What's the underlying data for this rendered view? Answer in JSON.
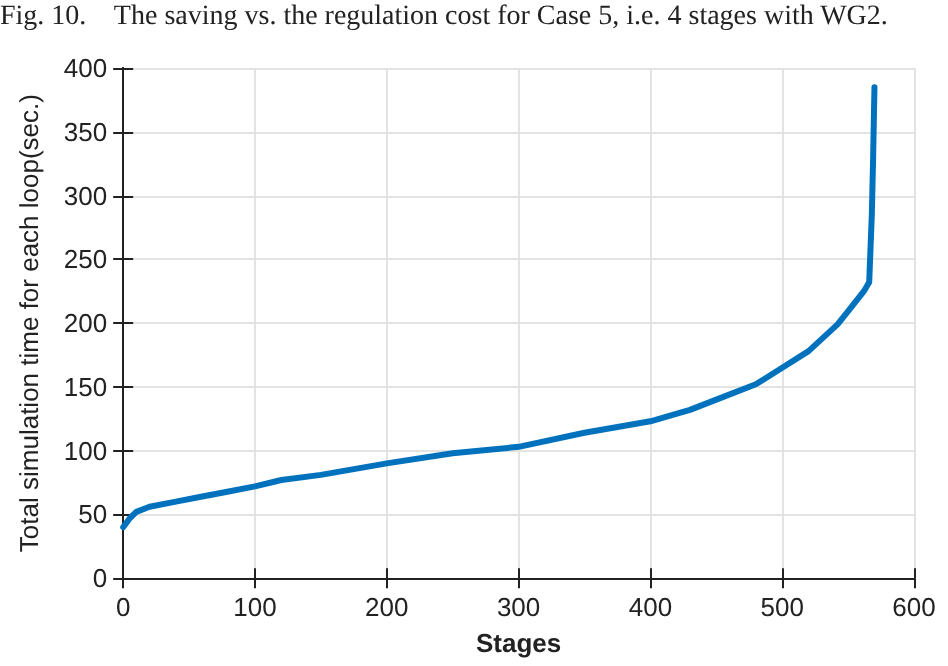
{
  "chart_data": {
    "type": "line",
    "annotations": [
      "Fig. 10.    The saving vs. the regulation cost for Case 5, i.e. 4 stages with WG2."
    ],
    "xlabel": "Stages",
    "ylabel": "Total simulation time for each loop(sec.)",
    "x": [
      0,
      5,
      10,
      20,
      40,
      60,
      80,
      100,
      120,
      150,
      200,
      250,
      300,
      350,
      400,
      430,
      450,
      480,
      500,
      520,
      542,
      552,
      562,
      566,
      568,
      569,
      570
    ],
    "series": [
      {
        "color": "#0072bd",
        "values": [
          40,
          47,
          52,
          56,
          60,
          64,
          68,
          72,
          77,
          81,
          90,
          98,
          103,
          114,
          123,
          132,
          140,
          152,
          165,
          178,
          199,
          212,
          225,
          232,
          285,
          330,
          385
        ]
      }
    ],
    "xlim": [
      0,
      600
    ],
    "xticks": [
      0,
      100,
      200,
      300,
      400,
      500,
      600
    ],
    "ylim": [
      0,
      400
    ],
    "yticks": [
      0,
      50,
      100,
      150,
      200,
      250,
      300,
      350,
      400
    ],
    "grid": true,
    "marker": "none",
    "line_style": "solid"
  }
}
